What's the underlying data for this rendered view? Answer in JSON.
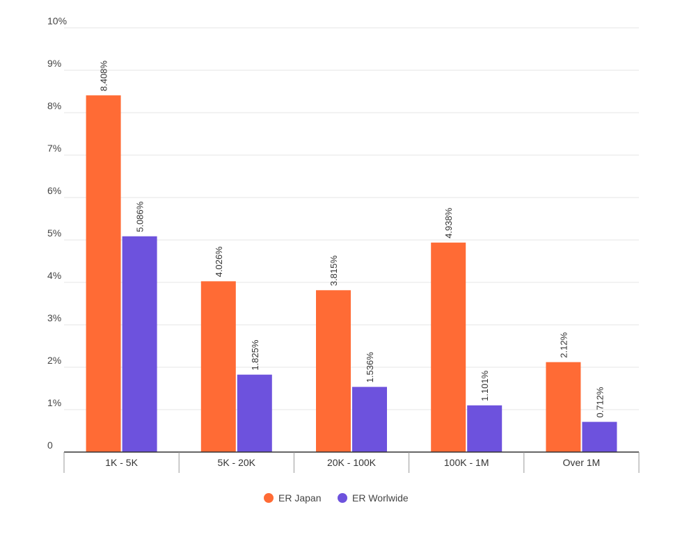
{
  "chart_data": {
    "type": "bar",
    "categories": [
      "1K - 5K",
      "5K - 20K",
      "20K - 100K",
      "100K - 1M",
      "Over 1M"
    ],
    "series": [
      {
        "name": "ER Japan",
        "color": "#ff6b35",
        "values": [
          8.408,
          4.026,
          3.815,
          4.938,
          2.12
        ],
        "labels": [
          "8.408%",
          "4.026%",
          "3.815%",
          "4.938%",
          "2.12%"
        ]
      },
      {
        "name": "ER Worlwide",
        "color": "#6d52dd",
        "values": [
          5.086,
          1.825,
          1.536,
          1.101,
          0.712
        ],
        "labels": [
          "5.086%",
          "1.825%",
          "1.536%",
          "1.101%",
          "0.712%"
        ]
      }
    ],
    "yticks": [
      {
        "value": 0,
        "label": "0"
      },
      {
        "value": 1,
        "label": "1%"
      },
      {
        "value": 2,
        "label": "2%"
      },
      {
        "value": 3,
        "label": "3%"
      },
      {
        "value": 4,
        "label": "4%"
      },
      {
        "value": 5,
        "label": "5%"
      },
      {
        "value": 6,
        "label": "6%"
      },
      {
        "value": 7,
        "label": "7%"
      },
      {
        "value": 8,
        "label": "8%"
      },
      {
        "value": 9,
        "label": "9%"
      },
      {
        "value": 10,
        "label": "10%"
      }
    ],
    "ylim": [
      0,
      10
    ],
    "grid": true,
    "legend": "bottom-center"
  }
}
